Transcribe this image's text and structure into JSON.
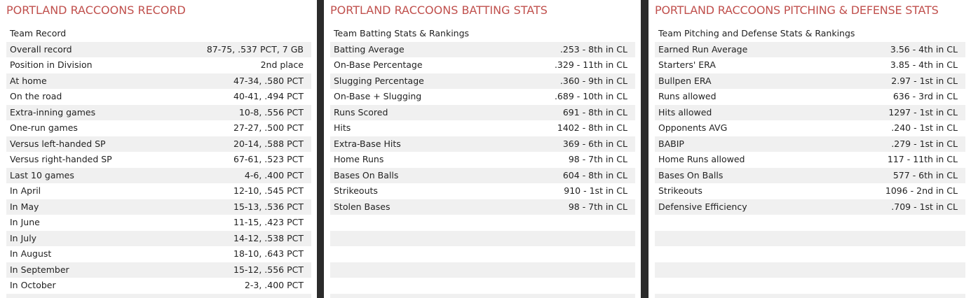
{
  "record": {
    "title": "PORTLAND RACCOONS RECORD",
    "header": "Team Record",
    "rows": [
      {
        "label": "Overall record",
        "value": "87-75, .537 PCT, 7 GB"
      },
      {
        "label": "Position in Division",
        "value": "2nd place"
      },
      {
        "label": "At home",
        "value": "47-34, .580 PCT"
      },
      {
        "label": "On the road",
        "value": "40-41, .494 PCT"
      },
      {
        "label": "Extra-inning games",
        "value": "10-8, .556 PCT"
      },
      {
        "label": "One-run games",
        "value": "27-27, .500 PCT"
      },
      {
        "label": "Versus left-handed SP",
        "value": "20-14, .588 PCT"
      },
      {
        "label": "Versus right-handed SP",
        "value": "67-61, .523 PCT"
      },
      {
        "label": "Last 10 games",
        "value": "4-6, .400 PCT"
      },
      {
        "label": "In April",
        "value": "12-10, .545 PCT"
      },
      {
        "label": "In May",
        "value": "15-13, .536 PCT"
      },
      {
        "label": "In June",
        "value": "11-15, .423 PCT"
      },
      {
        "label": "In July",
        "value": "14-12, .538 PCT"
      },
      {
        "label": "In August",
        "value": "18-10, .643 PCT"
      },
      {
        "label": "In September",
        "value": "15-12, .556 PCT"
      },
      {
        "label": "In October",
        "value": "2-3, .400 PCT"
      },
      {
        "label": "",
        "value": ""
      }
    ]
  },
  "batting": {
    "title": "PORTLAND RACCOONS BATTING STATS",
    "header": "Team Batting Stats & Rankings",
    "rows": [
      {
        "label": "Batting Average",
        "value": ".253 - 8th  in CL"
      },
      {
        "label": "On-Base Percentage",
        "value": ".329 - 11th  in CL"
      },
      {
        "label": "Slugging Percentage",
        "value": ".360 - 9th  in CL"
      },
      {
        "label": "On-Base + Slugging",
        "value": ".689 - 10th  in CL"
      },
      {
        "label": "Runs Scored",
        "value": "691 - 8th  in CL"
      },
      {
        "label": "Hits",
        "value": "1402 - 8th  in CL"
      },
      {
        "label": "Extra-Base Hits",
        "value": "369 - 6th  in CL"
      },
      {
        "label": "Home Runs",
        "value": "98 - 7th  in CL"
      },
      {
        "label": "Bases On Balls",
        "value": "604 - 8th  in CL"
      },
      {
        "label": "Strikeouts",
        "value": "910 - 1st  in CL"
      },
      {
        "label": "Stolen Bases",
        "value": "98 - 7th  in CL"
      },
      {
        "label": "",
        "value": ""
      },
      {
        "label": "",
        "value": ""
      },
      {
        "label": "",
        "value": ""
      },
      {
        "label": "",
        "value": ""
      },
      {
        "label": "",
        "value": ""
      },
      {
        "label": "",
        "value": ""
      }
    ]
  },
  "pitching": {
    "title": "PORTLAND RACCOONS PITCHING & DEFENSE STATS",
    "header": "Team Pitching and Defense Stats & Rankings",
    "rows": [
      {
        "label": "Earned Run Average",
        "value": "3.56 - 4th  in CL"
      },
      {
        "label": "Starters' ERA",
        "value": "3.85 - 4th  in CL"
      },
      {
        "label": "Bullpen ERA",
        "value": "2.97 - 1st  in CL"
      },
      {
        "label": "Runs allowed",
        "value": "636 - 3rd  in CL"
      },
      {
        "label": "Hits allowed",
        "value": "1297 - 1st  in CL"
      },
      {
        "label": "Opponents AVG",
        "value": ".240 - 1st  in CL"
      },
      {
        "label": "BABIP",
        "value": ".279 - 1st  in CL"
      },
      {
        "label": "Home Runs allowed",
        "value": "117 - 11th  in CL"
      },
      {
        "label": "Bases On Balls",
        "value": "577 - 6th  in CL"
      },
      {
        "label": "Strikeouts",
        "value": "1096 - 2nd  in CL"
      },
      {
        "label": "Defensive Efficiency",
        "value": ".709 - 1st  in CL"
      },
      {
        "label": "",
        "value": ""
      },
      {
        "label": "",
        "value": ""
      },
      {
        "label": "",
        "value": ""
      },
      {
        "label": "",
        "value": ""
      },
      {
        "label": "",
        "value": ""
      },
      {
        "label": "",
        "value": ""
      }
    ]
  }
}
